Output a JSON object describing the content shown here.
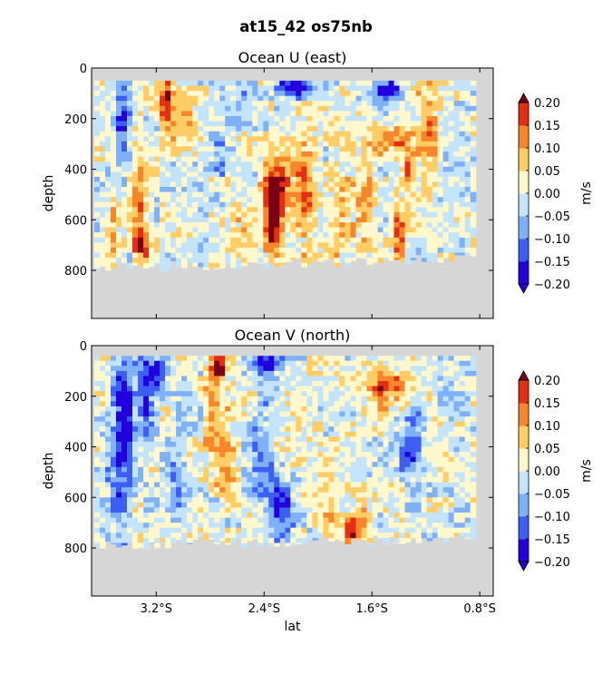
{
  "figure": {
    "suptitle": "at15_42 os75nb"
  },
  "colormap": {
    "colors": [
      "#2200dd",
      "#3d5ef2",
      "#7fb0f8",
      "#c4e4fb",
      "#fff8cc",
      "#ffcc66",
      "#f7852a",
      "#e32f12"
    ],
    "under_color": "#2200dd",
    "over_color": "#7a0015",
    "mask_color": "#d6d6d6"
  },
  "chart_data": [
    {
      "type": "heatmap",
      "title": "Ocean U (east)",
      "xlabel": "",
      "ylabel": "depth",
      "x_axis": {
        "values": [
          -3.5,
          -3.2,
          -2.4,
          -1.6,
          -0.8
        ],
        "labels": [
          "3.2°S",
          "2.4°S",
          "1.6°S",
          "0.8°S"
        ],
        "ticks": [
          -3.2,
          -2.4,
          -1.6,
          -0.8
        ],
        "range": [
          -3.68,
          -0.7
        ]
      },
      "y_axis": {
        "ticks": [
          0,
          200,
          400,
          600,
          800
        ],
        "labels": [
          "0",
          "200",
          "400",
          "600",
          "800"
        ],
        "range": [
          0,
          990
        ],
        "inverted": true
      },
      "colorbar": {
        "label": "m/s",
        "ticks": [
          0.2,
          0.15,
          0.1,
          0.05,
          0.0,
          -0.05,
          -0.1,
          -0.15,
          -0.2
        ],
        "tick_labels": [
          "0.20",
          "0.15",
          "0.10",
          "0.05",
          "0.00",
          "−0.05",
          "−0.10",
          "−0.15",
          "−0.20"
        ],
        "levels": [
          -0.2,
          -0.15,
          -0.1,
          -0.05,
          0.0,
          0.05,
          0.1,
          0.15,
          0.2
        ]
      },
      "data_bounds": {
        "depth_top": 50,
        "lat_right": -0.85,
        "bottom_depth_left": 790,
        "bottom_depth_right": 750
      },
      "features": [
        {
          "lat": -3.47,
          "depth": 200,
          "value": -0.18,
          "lat_width": 0.06,
          "depth_width": 180
        },
        {
          "lat": -3.15,
          "depth": 120,
          "value": 0.22,
          "lat_width": 0.05,
          "depth_width": 80
        },
        {
          "lat": -3.0,
          "depth": 200,
          "value": 0.08,
          "lat_width": 0.12,
          "depth_width": 150
        },
        {
          "lat": -3.33,
          "depth": 700,
          "value": 0.16,
          "lat_width": 0.06,
          "depth_width": 90
        },
        {
          "lat": -3.35,
          "depth": 500,
          "value": 0.1,
          "lat_width": 0.07,
          "depth_width": 200
        },
        {
          "lat": -3.55,
          "depth": 650,
          "value": 0.07,
          "lat_width": 0.05,
          "depth_width": 150
        },
        {
          "lat": -2.75,
          "depth": 320,
          "value": -0.09,
          "lat_width": 0.08,
          "depth_width": 100
        },
        {
          "lat": -2.35,
          "depth": 580,
          "value": 0.26,
          "lat_width": 0.07,
          "depth_width": 160
        },
        {
          "lat": -2.28,
          "depth": 420,
          "value": 0.14,
          "lat_width": 0.12,
          "depth_width": 140
        },
        {
          "lat": -2.1,
          "depth": 500,
          "value": 0.13,
          "lat_width": 0.07,
          "depth_width": 250
        },
        {
          "lat": -2.2,
          "depth": 60,
          "value": -0.22,
          "lat_width": 0.12,
          "depth_width": 40
        },
        {
          "lat": -1.5,
          "depth": 70,
          "value": -0.2,
          "lat_width": 0.08,
          "depth_width": 35
        },
        {
          "lat": -1.4,
          "depth": 280,
          "value": 0.14,
          "lat_width": 0.15,
          "depth_width": 60
        },
        {
          "lat": -1.35,
          "depth": 400,
          "value": 0.18,
          "lat_width": 0.04,
          "depth_width": 60
        },
        {
          "lat": -1.42,
          "depth": 650,
          "value": 0.16,
          "lat_width": 0.05,
          "depth_width": 180
        },
        {
          "lat": -1.2,
          "depth": 200,
          "value": 0.08,
          "lat_width": 0.08,
          "depth_width": 200
        },
        {
          "lat": -1.1,
          "depth": 120,
          "value": 0.05,
          "lat_width": 0.07,
          "depth_width": 80
        },
        {
          "lat": -1.5,
          "depth": 110,
          "value": -0.07,
          "lat_width": 0.12,
          "depth_width": 60
        },
        {
          "lat": -2.55,
          "depth": 130,
          "value": -0.06,
          "lat_width": 0.12,
          "depth_width": 80
        },
        {
          "lat": -2.6,
          "depth": 650,
          "value": 0.07,
          "lat_width": 0.1,
          "depth_width": 120
        },
        {
          "lat": -1.85,
          "depth": 550,
          "value": 0.09,
          "lat_width": 0.12,
          "depth_width": 220
        },
        {
          "lat": -1.65,
          "depth": 450,
          "value": 0.1,
          "lat_width": 0.07,
          "depth_width": 250
        }
      ]
    },
    {
      "type": "heatmap",
      "title": "Ocean V (north)",
      "xlabel": "lat",
      "ylabel": "depth",
      "x_axis": {
        "labels": [
          "3.2°S",
          "2.4°S",
          "1.6°S",
          "0.8°S"
        ],
        "ticks": [
          -3.2,
          -2.4,
          -1.6,
          -0.8
        ],
        "range": [
          -3.68,
          -0.7
        ]
      },
      "y_axis": {
        "ticks": [
          0,
          200,
          400,
          600,
          800
        ],
        "labels": [
          "0",
          "200",
          "400",
          "600",
          "800"
        ],
        "range": [
          0,
          990
        ],
        "inverted": true
      },
      "colorbar": {
        "label": "m/s",
        "ticks": [
          0.2,
          0.15,
          0.1,
          0.05,
          0.0,
          -0.05,
          -0.1,
          -0.15,
          -0.2
        ],
        "tick_labels": [
          "0.20",
          "0.15",
          "0.10",
          "0.05",
          "0.00",
          "−0.05",
          "−0.10",
          "−0.15",
          "−0.20"
        ],
        "levels": [
          -0.2,
          -0.15,
          -0.1,
          -0.05,
          0.0,
          0.05,
          0.1,
          0.15,
          0.2
        ]
      },
      "data_bounds": {
        "depth_top": 40,
        "lat_right": -0.85,
        "bottom_depth_left": 790,
        "bottom_depth_right": 760
      },
      "features": [
        {
          "lat": -3.45,
          "depth": 250,
          "value": -0.22,
          "lat_width": 0.07,
          "depth_width": 200
        },
        {
          "lat": -3.3,
          "depth": 150,
          "value": -0.2,
          "lat_width": 0.06,
          "depth_width": 160
        },
        {
          "lat": -3.2,
          "depth": 100,
          "value": -0.22,
          "lat_width": 0.05,
          "depth_width": 60
        },
        {
          "lat": -3.5,
          "depth": 550,
          "value": -0.1,
          "lat_width": 0.1,
          "depth_width": 250
        },
        {
          "lat": -2.8,
          "depth": 250,
          "value": 0.15,
          "lat_width": 0.06,
          "depth_width": 200
        },
        {
          "lat": -2.75,
          "depth": 80,
          "value": 0.22,
          "lat_width": 0.04,
          "depth_width": 50
        },
        {
          "lat": -2.7,
          "depth": 450,
          "value": 0.11,
          "lat_width": 0.07,
          "depth_width": 150
        },
        {
          "lat": -2.4,
          "depth": 60,
          "value": -0.22,
          "lat_width": 0.1,
          "depth_width": 40
        },
        {
          "lat": -2.3,
          "depth": 620,
          "value": -0.14,
          "lat_width": 0.1,
          "depth_width": 120
        },
        {
          "lat": -2.45,
          "depth": 400,
          "value": -0.08,
          "lat_width": 0.1,
          "depth_width": 200
        },
        {
          "lat": -1.95,
          "depth": 600,
          "value": 0.06,
          "lat_width": 0.08,
          "depth_width": 150
        },
        {
          "lat": -1.78,
          "depth": 740,
          "value": 0.2,
          "lat_width": 0.05,
          "depth_width": 60
        },
        {
          "lat": -1.7,
          "depth": 680,
          "value": 0.1,
          "lat_width": 0.06,
          "depth_width": 130
        },
        {
          "lat": -1.55,
          "depth": 180,
          "value": 0.16,
          "lat_width": 0.06,
          "depth_width": 70
        },
        {
          "lat": -1.4,
          "depth": 160,
          "value": 0.11,
          "lat_width": 0.08,
          "depth_width": 90
        },
        {
          "lat": -1.6,
          "depth": 120,
          "value": 0.06,
          "lat_width": 0.15,
          "depth_width": 70
        },
        {
          "lat": -1.35,
          "depth": 420,
          "value": -0.12,
          "lat_width": 0.05,
          "depth_width": 80
        },
        {
          "lat": -1.3,
          "depth": 350,
          "value": -0.06,
          "lat_width": 0.08,
          "depth_width": 200
        },
        {
          "lat": -3.05,
          "depth": 550,
          "value": -0.09,
          "lat_width": 0.08,
          "depth_width": 200
        }
      ]
    }
  ]
}
